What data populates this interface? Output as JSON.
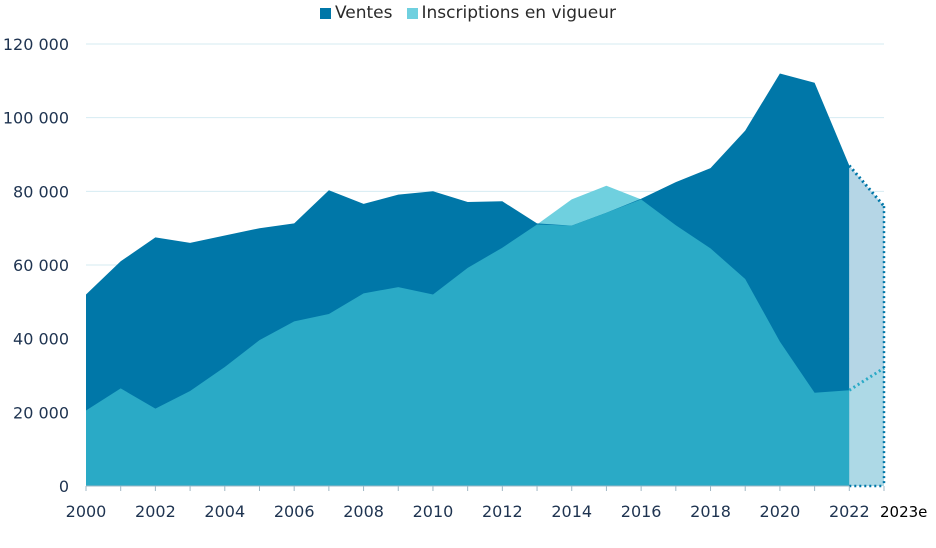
{
  "chart_data": {
    "type": "area",
    "x": [
      "2000",
      "2001",
      "2002",
      "2003",
      "2004",
      "2005",
      "2006",
      "2007",
      "2008",
      "2009",
      "2010",
      "2011",
      "2012",
      "2013",
      "2014",
      "2015",
      "2016",
      "2017",
      "2018",
      "2019",
      "2020",
      "2021",
      "2022",
      "2023e"
    ],
    "x_tick_labels": [
      "2000",
      "2002",
      "2004",
      "2006",
      "2008",
      "2010",
      "2012",
      "2014",
      "2016",
      "2018",
      "2020",
      "2022",
      "2023e"
    ],
    "y_tick_labels": [
      "0",
      "20 000",
      "40 000",
      "60 000",
      "80 000",
      "100 000",
      "120 000"
    ],
    "ylim": [
      0,
      120000
    ],
    "estimated_from": "2022",
    "series": [
      {
        "name": "Ventes",
        "color": "#0077a8",
        "values": [
          52000,
          61000,
          67500,
          66000,
          68000,
          70000,
          71300,
          80300,
          76600,
          79100,
          80000,
          77100,
          77300,
          71300,
          70700,
          74200,
          78000,
          82500,
          86300,
          96500,
          112000,
          109500,
          87000,
          76000
        ]
      },
      {
        "name": "Inscriptions en vigueur",
        "color": "#6fd0df",
        "values": [
          20500,
          26500,
          21000,
          25800,
          32300,
          39600,
          44700,
          46700,
          52300,
          54000,
          52000,
          59200,
          64700,
          71000,
          77800,
          81500,
          77800,
          70800,
          64500,
          56200,
          39200,
          25300,
          26000,
          32000
        ]
      }
    ],
    "grid": "horizontal",
    "legend_position": "top-center"
  }
}
